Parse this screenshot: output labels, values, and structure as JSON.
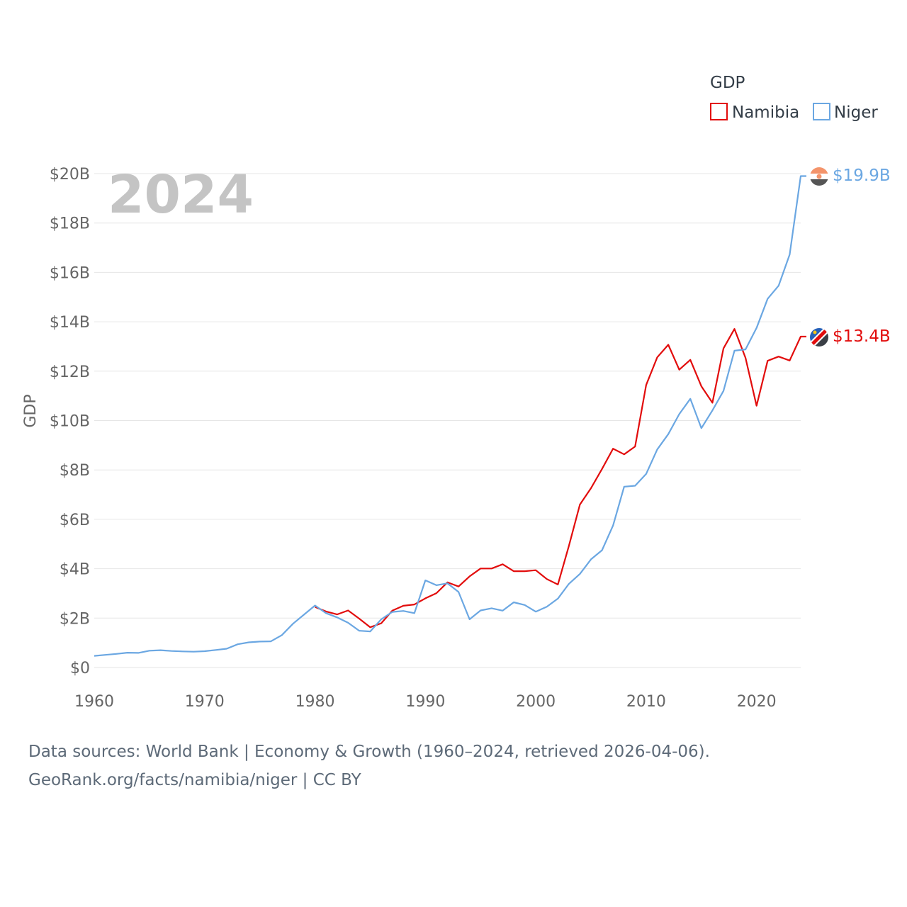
{
  "legend": {
    "title": "GDP",
    "items": [
      {
        "name": "Namibia",
        "color": "#e20c0c"
      },
      {
        "name": "Niger",
        "color": "#6ba7e2"
      }
    ]
  },
  "year_label": "2024",
  "end_labels": {
    "namibia": "$13.4B",
    "niger": "$19.9B"
  },
  "source_lines": [
    "Data sources: World Bank | Economy & Growth (1960–2024, retrieved 2026-04-06).",
    "GeoRank.org/facts/namibia/niger | CC BY"
  ],
  "chart_data": {
    "type": "line",
    "title": "",
    "xlabel": "",
    "ylabel": "GDP",
    "xlim": [
      1960,
      2024
    ],
    "ylim": [
      0,
      20
    ],
    "x_ticks": [
      1960,
      1970,
      1980,
      1990,
      2000,
      2010,
      2020
    ],
    "x_tick_labels": [
      "1960",
      "1970",
      "1980",
      "1990",
      "2000",
      "2010",
      "2020"
    ],
    "y_ticks": [
      0,
      2,
      4,
      6,
      8,
      10,
      12,
      14,
      16,
      18,
      20
    ],
    "y_tick_labels": [
      "$0",
      "$2B",
      "$4B",
      "$6B",
      "$8B",
      "$10B",
      "$12B",
      "$14B",
      "$16B",
      "$18B",
      "$20B"
    ],
    "unit": "billion USD",
    "series": [
      {
        "name": "Namibia",
        "color": "#e20c0c",
        "x": [
          1980,
          1981,
          1982,
          1983,
          1984,
          1985,
          1986,
          1987,
          1988,
          1989,
          1990,
          1991,
          1992,
          1993,
          1994,
          1995,
          1996,
          1997,
          1998,
          1999,
          2000,
          2001,
          2002,
          2003,
          2004,
          2005,
          2006,
          2007,
          2008,
          2009,
          2010,
          2011,
          2012,
          2013,
          2014,
          2015,
          2016,
          2017,
          2018,
          2019,
          2020,
          2021,
          2022,
          2023,
          2024
        ],
        "values": [
          2.45,
          2.27,
          2.15,
          2.31,
          1.98,
          1.63,
          1.79,
          2.3,
          2.5,
          2.55,
          2.8,
          3.01,
          3.45,
          3.28,
          3.69,
          4.01,
          4.01,
          4.18,
          3.9,
          3.9,
          3.94,
          3.58,
          3.36,
          4.93,
          6.6,
          7.26,
          8.04,
          8.86,
          8.63,
          8.95,
          11.44,
          12.56,
          13.07,
          12.06,
          12.46,
          11.39,
          10.72,
          12.92,
          13.71,
          12.54,
          10.6,
          12.42,
          12.59,
          12.43,
          13.4
        ]
      },
      {
        "name": "Niger",
        "color": "#6ba7e2",
        "x": [
          1960,
          1961,
          1962,
          1963,
          1964,
          1965,
          1966,
          1967,
          1968,
          1969,
          1970,
          1971,
          1972,
          1973,
          1974,
          1975,
          1976,
          1977,
          1978,
          1979,
          1980,
          1981,
          1982,
          1983,
          1984,
          1985,
          1986,
          1987,
          1988,
          1989,
          1990,
          1991,
          1992,
          1993,
          1994,
          1995,
          1996,
          1997,
          1998,
          1999,
          2000,
          2001,
          2002,
          2003,
          2004,
          2005,
          2006,
          2007,
          2008,
          2009,
          2010,
          2011,
          2012,
          2013,
          2014,
          2015,
          2016,
          2017,
          2018,
          2019,
          2020,
          2021,
          2022,
          2023,
          2024
        ],
        "values": [
          0.47,
          0.51,
          0.55,
          0.6,
          0.59,
          0.68,
          0.7,
          0.67,
          0.65,
          0.64,
          0.66,
          0.71,
          0.76,
          0.94,
          1.02,
          1.05,
          1.06,
          1.31,
          1.77,
          2.14,
          2.51,
          2.2,
          2.03,
          1.81,
          1.49,
          1.46,
          1.95,
          2.25,
          2.29,
          2.2,
          3.53,
          3.33,
          3.41,
          3.06,
          1.95,
          2.31,
          2.4,
          2.3,
          2.64,
          2.53,
          2.26,
          2.46,
          2.79,
          3.39,
          3.79,
          4.38,
          4.75,
          5.75,
          7.32,
          7.36,
          7.84,
          8.83,
          9.45,
          10.26,
          10.88,
          9.69,
          10.41,
          11.2,
          12.83,
          12.88,
          13.75,
          14.93,
          15.46,
          16.72,
          19.9
        ]
      }
    ]
  }
}
